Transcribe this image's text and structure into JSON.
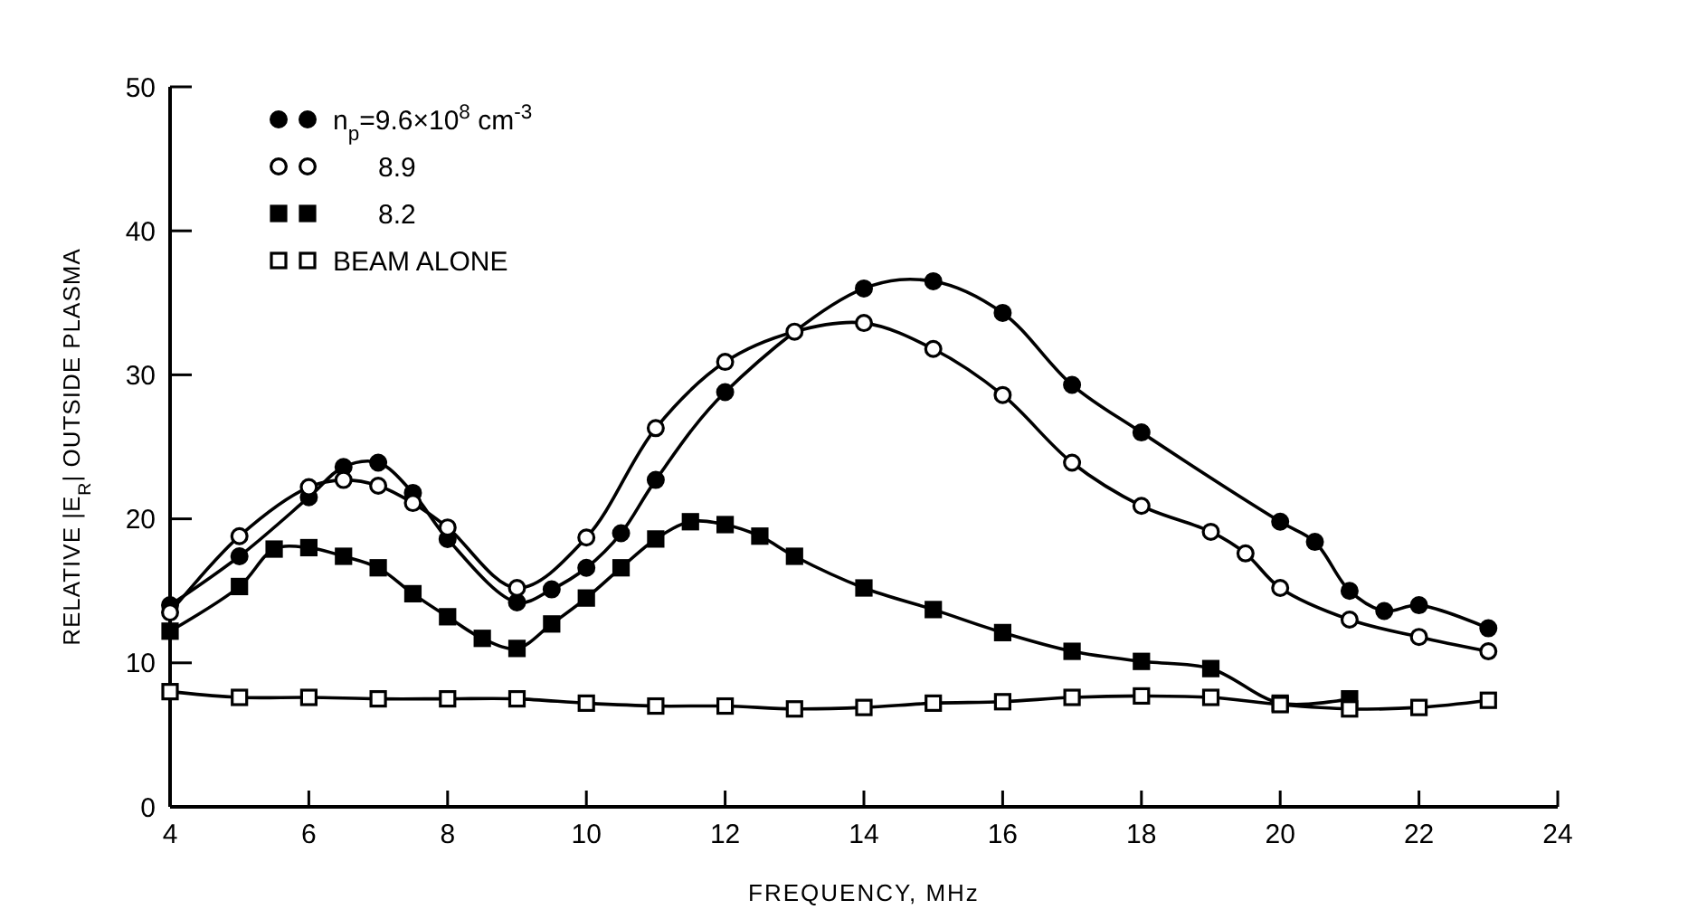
{
  "chart_data": {
    "type": "line",
    "xlabel": "FREQUENCY, MHz",
    "ylabel": "RELATIVE |E$_{R}$| OUTSIDE PLASMA",
    "xlim": [
      4,
      24
    ],
    "ylim": [
      0,
      50
    ],
    "xticks": [
      4,
      6,
      8,
      10,
      12,
      14,
      16,
      18,
      20,
      22,
      24
    ],
    "yticks": [
      0,
      10,
      20,
      30,
      40,
      50
    ],
    "grid": false,
    "legend": "top left",
    "line_style": "solid",
    "series": [
      {
        "name": "n$_{p}$=9.6×10$^{8}$ cm$^{-3}$",
        "color": "#000000",
        "marker": "circle",
        "x": [
          4,
          5,
          6,
          6.5,
          7,
          7.5,
          8,
          9,
          9.5,
          10,
          10.5,
          11,
          12,
          14,
          15,
          16,
          17,
          18,
          20,
          20.5,
          21,
          21.5,
          22,
          23
        ],
        "values": [
          14.0,
          17.4,
          21.5,
          23.6,
          23.9,
          21.8,
          18.6,
          14.2,
          15.1,
          16.6,
          19.0,
          22.7,
          28.8,
          36.0,
          36.5,
          34.3,
          29.3,
          26.0,
          19.8,
          18.4,
          15.0,
          13.6,
          14.0,
          12.4
        ]
      },
      {
        "name": "8.9",
        "color": "#000000",
        "marker": "circle",
        "colors": [
          "#ffffff",
          "#ffffff",
          "#ffffff",
          "#ffffff",
          "#ffffff",
          "#ffffff",
          "#ffffff",
          "#ffffff",
          "#ffffff",
          "#ffffff",
          "#ffffff",
          "#ffffff",
          "#ffffff",
          "#ffffff",
          "#ffffff",
          "#ffffff",
          "#ffffff",
          "#ffffff",
          "#ffffff",
          "#ffffff",
          "#ffffff",
          "#ffffff",
          "#ffffff"
        ],
        "x": [
          4,
          5,
          6,
          6.5,
          7,
          7.5,
          8,
          9,
          10,
          11,
          12,
          13,
          14,
          15,
          16,
          17,
          18,
          19,
          19.5,
          20,
          21,
          22,
          23
        ],
        "values": [
          13.5,
          18.8,
          22.2,
          22.7,
          22.3,
          21.1,
          19.4,
          15.2,
          18.7,
          26.3,
          30.9,
          33.0,
          33.6,
          31.8,
          28.6,
          23.9,
          20.9,
          19.1,
          17.6,
          15.2,
          13.0,
          11.8,
          10.8
        ]
      },
      {
        "name": "8.2",
        "color": "#000000",
        "marker": "square",
        "x": [
          4,
          5,
          5.5,
          6,
          6.5,
          7,
          7.5,
          8,
          8.5,
          9,
          9.5,
          10,
          10.5,
          11,
          11.5,
          12,
          12.5,
          13,
          14,
          15,
          16,
          17,
          18,
          19,
          20,
          21
        ],
        "values": [
          12.2,
          15.3,
          17.9,
          18.0,
          17.4,
          16.6,
          14.8,
          13.2,
          11.7,
          11.0,
          12.7,
          14.5,
          16.6,
          18.6,
          19.8,
          19.6,
          18.8,
          17.4,
          15.2,
          13.7,
          12.1,
          10.8,
          10.1,
          9.6,
          7.2,
          7.5
        ]
      },
      {
        "name": "BEAM ALONE",
        "color": "#000000",
        "marker": "square",
        "colors": [
          "#ffffff",
          "#ffffff",
          "#ffffff",
          "#ffffff",
          "#ffffff",
          "#ffffff",
          "#ffffff",
          "#ffffff",
          "#ffffff",
          "#ffffff",
          "#ffffff",
          "#ffffff",
          "#ffffff",
          "#ffffff",
          "#ffffff",
          "#ffffff",
          "#ffffff",
          "#ffffff",
          "#ffffff",
          "#ffffff"
        ],
        "x": [
          4,
          5,
          6,
          7,
          8,
          9,
          10,
          11,
          12,
          13,
          14,
          15,
          16,
          17,
          18,
          19,
          20,
          21,
          22,
          23
        ],
        "values": [
          8.0,
          7.6,
          7.6,
          7.5,
          7.5,
          7.5,
          7.2,
          7.0,
          7.0,
          6.8,
          6.9,
          7.2,
          7.3,
          7.6,
          7.7,
          7.6,
          7.1,
          6.8,
          6.9,
          7.4
        ]
      }
    ]
  }
}
